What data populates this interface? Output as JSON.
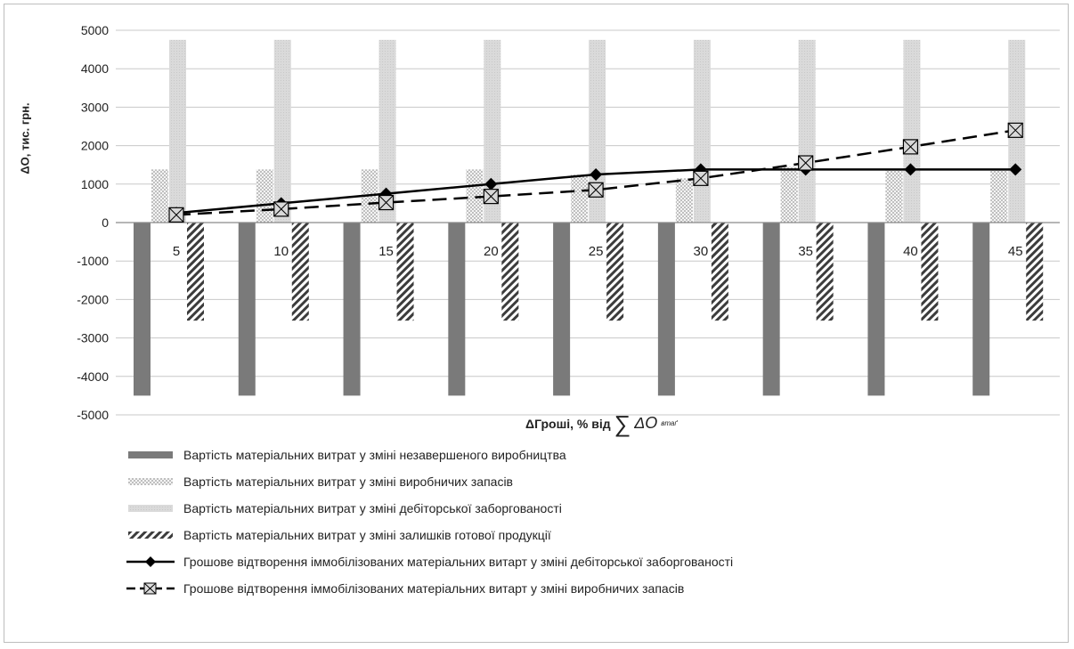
{
  "chart_data": {
    "type": "bar",
    "x_axis_title_main": "ΔГроші, % від",
    "x_axis_title_symbol": "∑",
    "x_axis_title_delta": "ΔO",
    "x_axis_title_sub": "втаґ",
    "ylabel": "ΔO,  тис. грн.",
    "ylim": [
      -5000,
      5000
    ],
    "yticks": [
      -5000,
      -4000,
      -3000,
      -2000,
      -1000,
      0,
      1000,
      2000,
      3000,
      4000,
      5000
    ],
    "grid": true,
    "legend_placement": "bottom",
    "categories": [
      "5",
      "10",
      "15",
      "20",
      "25",
      "30",
      "35",
      "40",
      "45"
    ],
    "bar_series": [
      {
        "name": "Вартість матеріальних витрат у зміні незавершеного виробництва",
        "style": "solid-dark",
        "color": "#7a7a7a",
        "values": [
          -4500,
          -4500,
          -4500,
          -4500,
          -4500,
          -4500,
          -4500,
          -4500,
          -4500
        ]
      },
      {
        "name": "Вартість матеріальних витрат у зміні виробничих запасів",
        "style": "dots",
        "color": "#cfcfcf",
        "values": [
          1380,
          1380,
          1380,
          1380,
          1250,
          1150,
          1450,
          1380,
          1380
        ]
      },
      {
        "name": "Вартість матеріальних витрат у зміні дебіторської заборгованості",
        "style": "light",
        "color": "#dcdcdc",
        "values": [
          4750,
          4750,
          4750,
          4750,
          4750,
          4750,
          4750,
          4750,
          4750
        ]
      },
      {
        "name": "Вартість матеріальних витрат у зміні залишків готової продукції",
        "style": "diagonal",
        "color": "#555555",
        "values": [
          -2550,
          -2550,
          -2550,
          -2550,
          -2550,
          -2550,
          -2550,
          -2550,
          -2550
        ]
      }
    ],
    "line_series": [
      {
        "name": "Грошове відтворення іммобілізованих матеріальних витарт у зміні дебіторської заборгованості",
        "style": "solid-diamond",
        "color": "#000000",
        "values": [
          250,
          500,
          750,
          1000,
          1250,
          1380,
          1380,
          1380,
          1380
        ]
      },
      {
        "name": "Грошове відтворення іммобілізованих матеріальних витарт у зміні виробничих запасів",
        "style": "dashed-square",
        "color": "#000000",
        "values": [
          200,
          350,
          520,
          680,
          850,
          1150,
          1550,
          1970,
          2400
        ]
      }
    ]
  }
}
